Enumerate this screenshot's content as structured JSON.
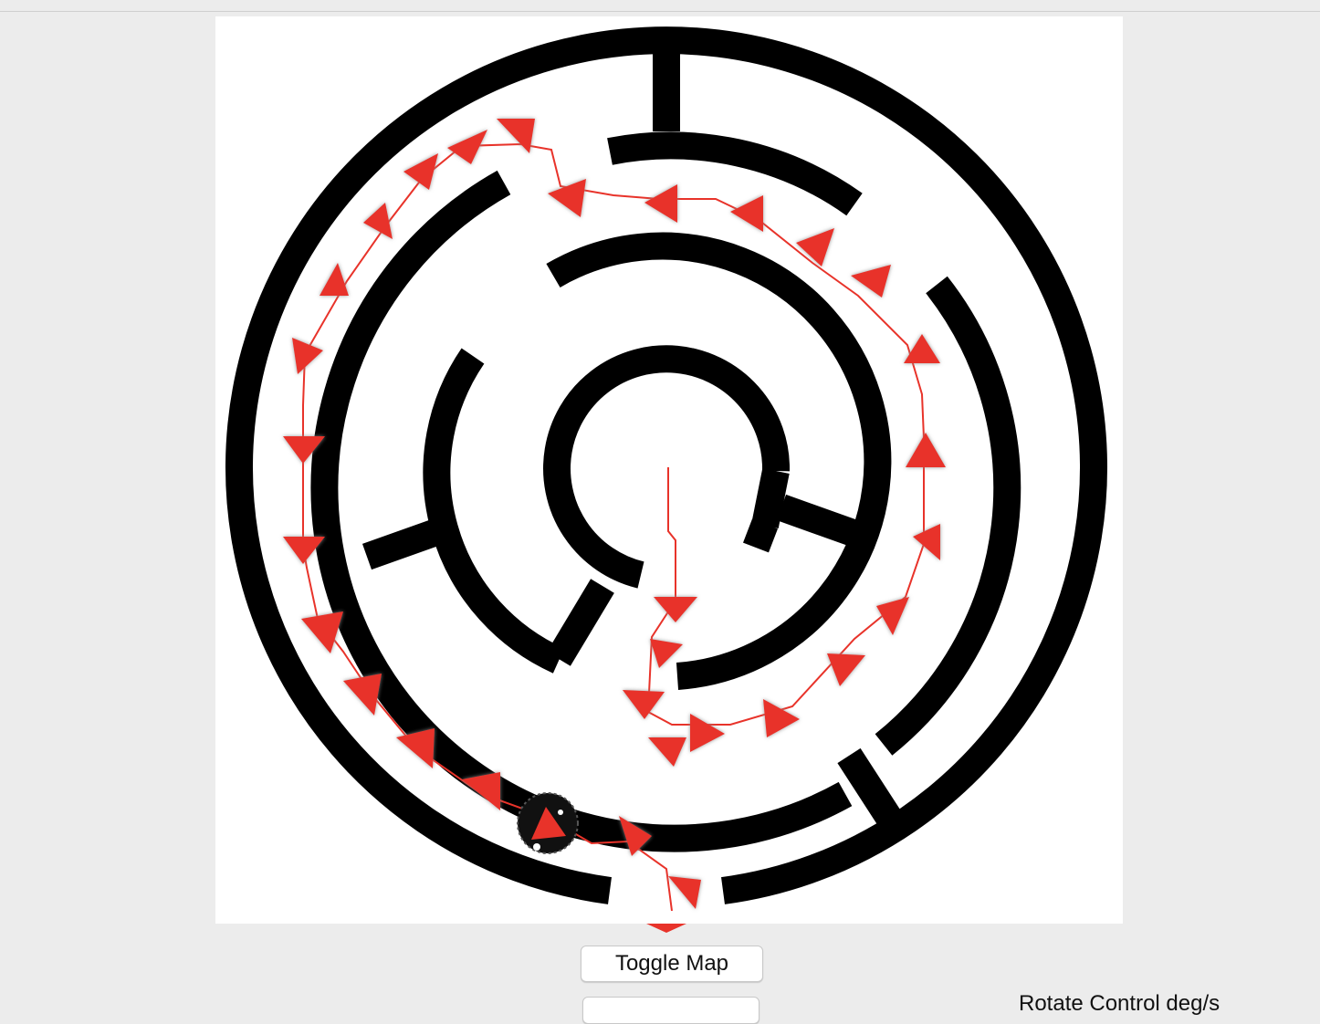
{
  "controls": {
    "toggle_map_label": "Toggle Map",
    "rotate_control_label": "Rotate Control deg/s"
  },
  "colors": {
    "maze_wall": "#000000",
    "path": "#e8332a",
    "background": "#ececec",
    "canvas": "#ffffff"
  },
  "icons": {
    "agent": "robot-agent-icon",
    "path_marker": "direction-arrow-icon"
  }
}
